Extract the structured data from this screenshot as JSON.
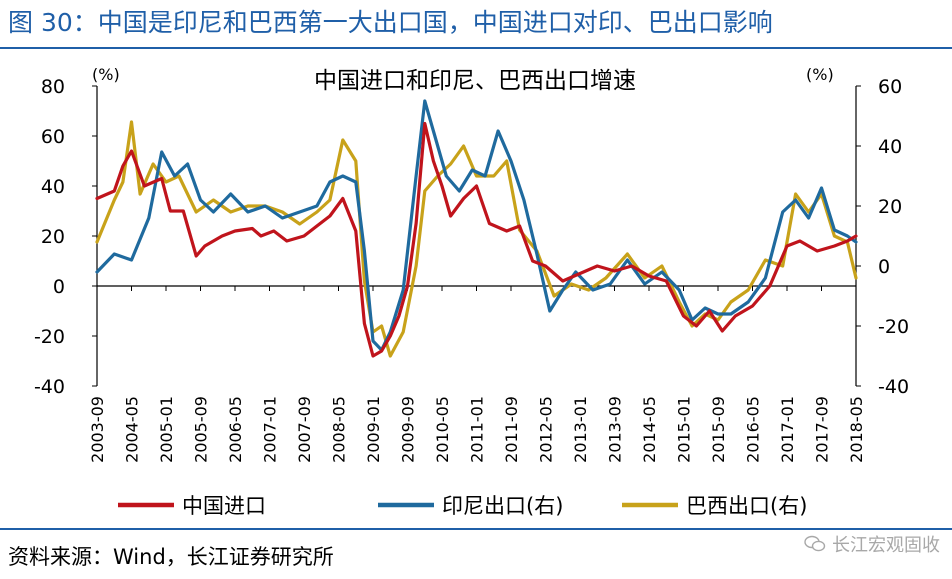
{
  "figure_title": "图 30：中国是印尼和巴西第一大出口国，中国进口对印、巴出口影响",
  "source": "资料来源：Wind，长江证券研究所",
  "watermark": "长江宏观固收",
  "colors": {
    "china": "#c0141c",
    "indonesia": "#1f6a9e",
    "brazil": "#c8a21a",
    "accent": "#1f5fa8"
  },
  "chart_data": {
    "type": "line",
    "title": "中国进口和印尼、巴西出口增速",
    "left_unit": "(%)",
    "right_unit": "(%)",
    "ylim_left": [
      -40,
      80
    ],
    "ylim_right": [
      -40,
      60
    ],
    "yticks_left": [
      -40,
      -20,
      0,
      20,
      40,
      60,
      80
    ],
    "yticks_right": [
      -40,
      -20,
      0,
      20,
      40,
      60
    ],
    "ytick_labels_left": [
      "-40",
      "-20",
      "0",
      "20",
      "40",
      "60",
      "80"
    ],
    "ytick_labels_right": [
      "-40",
      "-20",
      "0",
      "20",
      "40",
      "60"
    ],
    "x_start": "2003-09",
    "x_end": "2018-05",
    "x_tick_labels": [
      "2003-09",
      "2004-05",
      "2005-01",
      "2005-09",
      "2006-05",
      "2007-01",
      "2007-09",
      "2008-05",
      "2009-01",
      "2009-09",
      "2010-05",
      "2011-01",
      "2011-09",
      "2012-05",
      "2013-01",
      "2013-09",
      "2014-05",
      "2015-01",
      "2015-09",
      "2016-05",
      "2017-01",
      "2017-09",
      "2018-05"
    ],
    "grid": false,
    "legend_position": "bottom",
    "series": [
      {
        "name": "中国进口",
        "axis": "left",
        "color": "#c0141c",
        "points": [
          [
            "2003-09",
            35
          ],
          [
            "2004-01",
            38
          ],
          [
            "2004-03",
            48
          ],
          [
            "2004-05",
            54
          ],
          [
            "2004-08",
            40
          ],
          [
            "2004-12",
            43
          ],
          [
            "2005-02",
            30
          ],
          [
            "2005-05",
            30
          ],
          [
            "2005-08",
            12
          ],
          [
            "2005-10",
            16
          ],
          [
            "2006-02",
            20
          ],
          [
            "2006-05",
            22
          ],
          [
            "2006-09",
            23
          ],
          [
            "2006-11",
            20
          ],
          [
            "2007-02",
            22
          ],
          [
            "2007-05",
            18
          ],
          [
            "2007-09",
            20
          ],
          [
            "2007-12",
            24
          ],
          [
            "2008-03",
            28
          ],
          [
            "2008-06",
            35
          ],
          [
            "2008-09",
            22
          ],
          [
            "2008-11",
            -15
          ],
          [
            "2009-01",
            -28
          ],
          [
            "2009-03",
            -26
          ],
          [
            "2009-05",
            -20
          ],
          [
            "2009-07",
            -12
          ],
          [
            "2009-09",
            0
          ],
          [
            "2009-11",
            25
          ],
          [
            "2010-01",
            65
          ],
          [
            "2010-03",
            50
          ],
          [
            "2010-05",
            40
          ],
          [
            "2010-07",
            28
          ],
          [
            "2010-10",
            35
          ],
          [
            "2011-01",
            40
          ],
          [
            "2011-04",
            25
          ],
          [
            "2011-08",
            22
          ],
          [
            "2011-11",
            24
          ],
          [
            "2012-02",
            10
          ],
          [
            "2012-05",
            8
          ],
          [
            "2012-09",
            2
          ],
          [
            "2013-01",
            5
          ],
          [
            "2013-05",
            8
          ],
          [
            "2013-09",
            6
          ],
          [
            "2014-01",
            8
          ],
          [
            "2014-05",
            4
          ],
          [
            "2014-09",
            2
          ],
          [
            "2015-01",
            -12
          ],
          [
            "2015-04",
            -16
          ],
          [
            "2015-07",
            -10
          ],
          [
            "2015-10",
            -18
          ],
          [
            "2016-01",
            -12
          ],
          [
            "2016-05",
            -8
          ],
          [
            "2016-09",
            0
          ],
          [
            "2017-01",
            16
          ],
          [
            "2017-04",
            18
          ],
          [
            "2017-08",
            14
          ],
          [
            "2017-12",
            16
          ],
          [
            "2018-03",
            18
          ],
          [
            "2018-05",
            20
          ]
        ]
      },
      {
        "name": "印尼出口(右)",
        "axis": "right",
        "color": "#1f6a9e",
        "points": [
          [
            "2003-09",
            -2
          ],
          [
            "2004-01",
            4
          ],
          [
            "2004-05",
            2
          ],
          [
            "2004-09",
            16
          ],
          [
            "2004-12",
            38
          ],
          [
            "2005-03",
            30
          ],
          [
            "2005-06",
            34
          ],
          [
            "2005-09",
            22
          ],
          [
            "2005-12",
            18
          ],
          [
            "2006-04",
            24
          ],
          [
            "2006-08",
            18
          ],
          [
            "2006-12",
            20
          ],
          [
            "2007-04",
            16
          ],
          [
            "2007-08",
            18
          ],
          [
            "2007-12",
            20
          ],
          [
            "2008-03",
            28
          ],
          [
            "2008-06",
            30
          ],
          [
            "2008-09",
            28
          ],
          [
            "2008-11",
            5
          ],
          [
            "2009-01",
            -25
          ],
          [
            "2009-03",
            -28
          ],
          [
            "2009-05",
            -22
          ],
          [
            "2009-08",
            -8
          ],
          [
            "2009-11",
            30
          ],
          [
            "2010-01",
            55
          ],
          [
            "2010-03",
            45
          ],
          [
            "2010-06",
            30
          ],
          [
            "2010-09",
            25
          ],
          [
            "2010-12",
            32
          ],
          [
            "2011-03",
            30
          ],
          [
            "2011-06",
            45
          ],
          [
            "2011-09",
            35
          ],
          [
            "2011-12",
            22
          ],
          [
            "2012-03",
            4
          ],
          [
            "2012-06",
            -15
          ],
          [
            "2012-09",
            -8
          ],
          [
            "2012-12",
            -2
          ],
          [
            "2013-04",
            -8
          ],
          [
            "2013-08",
            -6
          ],
          [
            "2013-12",
            2
          ],
          [
            "2014-04",
            -6
          ],
          [
            "2014-08",
            -2
          ],
          [
            "2014-12",
            -8
          ],
          [
            "2015-03",
            -18
          ],
          [
            "2015-06",
            -14
          ],
          [
            "2015-09",
            -16
          ],
          [
            "2015-12",
            -16
          ],
          [
            "2016-04",
            -12
          ],
          [
            "2016-08",
            -4
          ],
          [
            "2016-12",
            18
          ],
          [
            "2017-03",
            22
          ],
          [
            "2017-06",
            16
          ],
          [
            "2017-09",
            26
          ],
          [
            "2017-12",
            12
          ],
          [
            "2018-03",
            10
          ],
          [
            "2018-05",
            8
          ]
        ]
      },
      {
        "name": "巴西出口(右)",
        "axis": "right",
        "color": "#c8a21a",
        "points": [
          [
            "2003-09",
            8
          ],
          [
            "2004-01",
            22
          ],
          [
            "2004-03",
            28
          ],
          [
            "2004-05",
            48
          ],
          [
            "2004-07",
            24
          ],
          [
            "2004-10",
            34
          ],
          [
            "2005-01",
            28
          ],
          [
            "2005-04",
            30
          ],
          [
            "2005-08",
            18
          ],
          [
            "2005-12",
            22
          ],
          [
            "2006-04",
            18
          ],
          [
            "2006-08",
            20
          ],
          [
            "2006-12",
            20
          ],
          [
            "2007-04",
            18
          ],
          [
            "2007-08",
            14
          ],
          [
            "2007-12",
            18
          ],
          [
            "2008-03",
            22
          ],
          [
            "2008-06",
            42
          ],
          [
            "2008-09",
            35
          ],
          [
            "2008-11",
            -5
          ],
          [
            "2009-01",
            -22
          ],
          [
            "2009-03",
            -20
          ],
          [
            "2009-05",
            -30
          ],
          [
            "2009-08",
            -22
          ],
          [
            "2009-11",
            0
          ],
          [
            "2010-01",
            25
          ],
          [
            "2010-04",
            30
          ],
          [
            "2010-07",
            34
          ],
          [
            "2010-10",
            40
          ],
          [
            "2011-01",
            30
          ],
          [
            "2011-05",
            30
          ],
          [
            "2011-08",
            35
          ],
          [
            "2011-11",
            12
          ],
          [
            "2012-03",
            5
          ],
          [
            "2012-07",
            -10
          ],
          [
            "2012-11",
            -6
          ],
          [
            "2013-03",
            -8
          ],
          [
            "2013-07",
            -4
          ],
          [
            "2013-12",
            4
          ],
          [
            "2014-04",
            -4
          ],
          [
            "2014-08",
            0
          ],
          [
            "2014-12",
            -12
          ],
          [
            "2015-03",
            -20
          ],
          [
            "2015-06",
            -16
          ],
          [
            "2015-09",
            -18
          ],
          [
            "2015-12",
            -12
          ],
          [
            "2016-04",
            -8
          ],
          [
            "2016-08",
            2
          ],
          [
            "2016-12",
            0
          ],
          [
            "2017-03",
            24
          ],
          [
            "2017-06",
            18
          ],
          [
            "2017-09",
            24
          ],
          [
            "2017-12",
            10
          ],
          [
            "2018-03",
            8
          ],
          [
            "2018-05",
            -4
          ]
        ]
      }
    ]
  }
}
